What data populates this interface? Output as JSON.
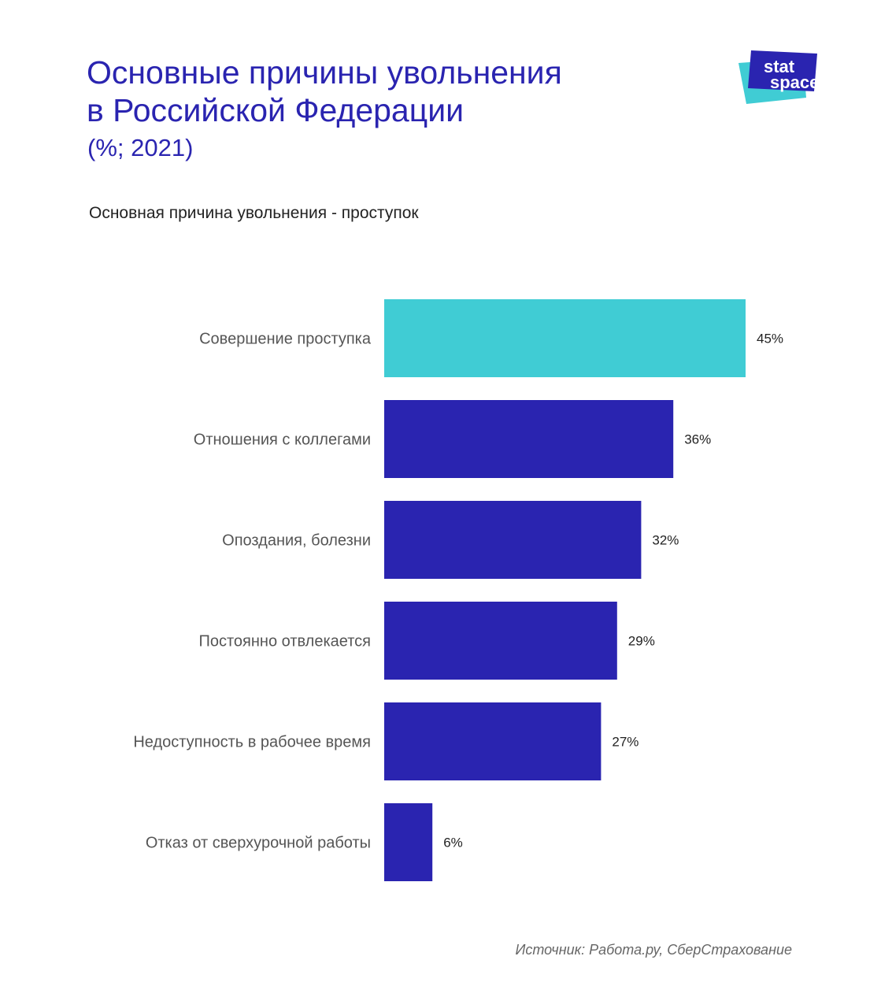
{
  "header": {
    "title_lines": [
      "Основные причины увольнения",
      "в Российской Федерации"
    ],
    "subtitle": "(%; 2021)",
    "logo_text": [
      "stat",
      "space"
    ]
  },
  "chart_data": {
    "type": "bar",
    "orientation": "horizontal",
    "title": "Основная причина увольнения - проступок",
    "categories": [
      "Совершение проступка",
      "Отношения с коллегами",
      "Опоздания, болезни",
      "Постоянно отвлекается",
      "Недоступность в рабочее время",
      "Отказ от сверхурочной работы"
    ],
    "values": [
      45,
      36,
      32,
      29,
      27,
      6
    ],
    "value_labels": [
      "45%",
      "36%",
      "32%",
      "29%",
      "27%",
      "6%"
    ],
    "highlight_index": 0,
    "colors": {
      "highlight": "#40ccd4",
      "default": "#2a24b0"
    },
    "unit": "%",
    "grid": false,
    "legend": "none"
  },
  "footer": {
    "source": "Источник: Работа.ру, СберСтрахование"
  },
  "colors": {
    "title": "#2a24b0",
    "logo_back": "#40ccd4",
    "logo_front": "#2a24b0"
  }
}
